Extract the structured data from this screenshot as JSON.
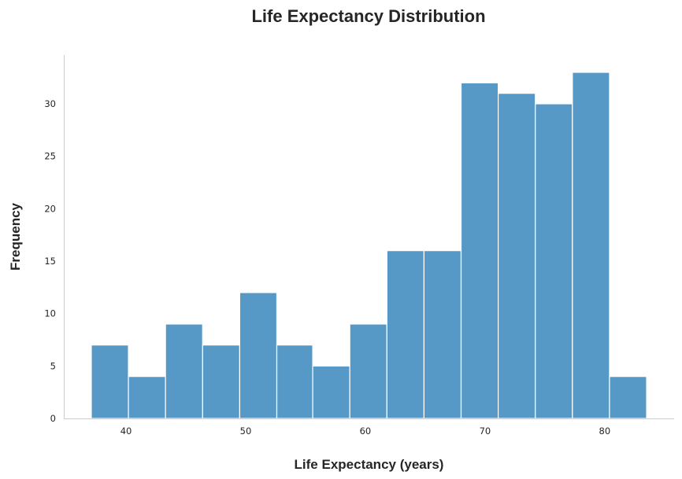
{
  "chart_data": {
    "type": "bar",
    "title": "Life Expectancy Distribution",
    "xlabel": "Life Expectancy (years)",
    "ylabel": "Frequency",
    "bins": [
      {
        "x0": 37.1,
        "x1": 40.2,
        "value": 7
      },
      {
        "x0": 40.2,
        "x1": 43.3,
        "value": 4
      },
      {
        "x0": 43.3,
        "x1": 46.4,
        "value": 9
      },
      {
        "x0": 46.4,
        "x1": 49.5,
        "value": 7
      },
      {
        "x0": 49.5,
        "x1": 52.6,
        "value": 12
      },
      {
        "x0": 52.6,
        "x1": 55.6,
        "value": 7
      },
      {
        "x0": 55.6,
        "x1": 58.7,
        "value": 5
      },
      {
        "x0": 58.7,
        "x1": 61.8,
        "value": 9
      },
      {
        "x0": 61.8,
        "x1": 64.9,
        "value": 16
      },
      {
        "x0": 64.9,
        "x1": 68.0,
        "value": 16
      },
      {
        "x0": 68.0,
        "x1": 71.1,
        "value": 32
      },
      {
        "x0": 71.1,
        "x1": 74.2,
        "value": 31
      },
      {
        "x0": 74.2,
        "x1": 77.3,
        "value": 30
      },
      {
        "x0": 77.3,
        "x1": 80.4,
        "value": 33
      },
      {
        "x0": 80.4,
        "x1": 83.5,
        "value": 4
      }
    ],
    "xlim": [
      34.8,
      85.8
    ],
    "ylim": [
      0,
      34.65
    ],
    "xticks": [
      40,
      50,
      60,
      70,
      80
    ],
    "yticks": [
      0,
      5,
      10,
      15,
      20,
      25,
      30
    ],
    "grid": false,
    "bar_color": "#5699c6"
  }
}
